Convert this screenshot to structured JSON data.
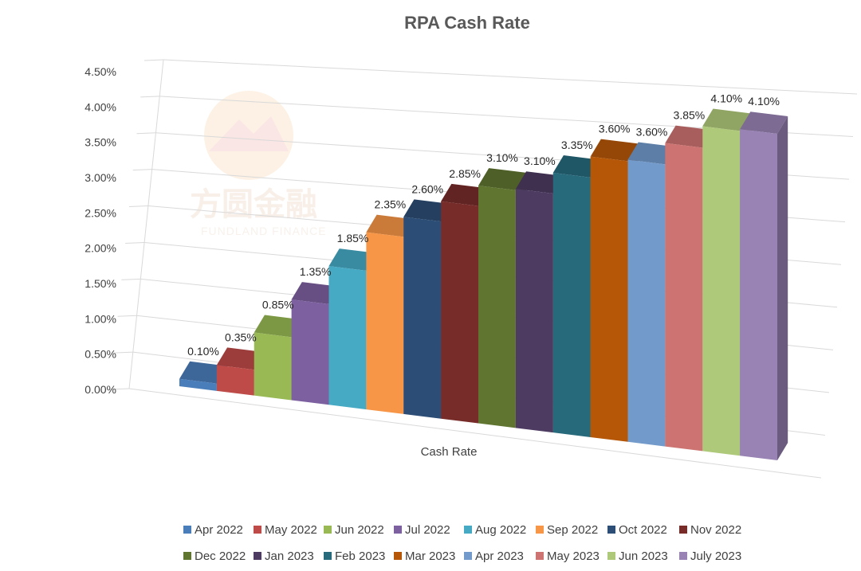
{
  "chart_data": {
    "type": "bar",
    "title": "RPA Cash Rate",
    "xlabel": "Cash Rate",
    "ylabel": "",
    "ylim": [
      0,
      4.5
    ],
    "yticks": [
      "0.00%",
      "0.50%",
      "1.00%",
      "1.50%",
      "2.00%",
      "2.50%",
      "3.00%",
      "3.50%",
      "4.00%",
      "4.50%"
    ],
    "legend_position": "bottom",
    "grid": true,
    "series": [
      {
        "name": "Apr 2022",
        "value": 0.1,
        "label": "0.10%",
        "color": "#4a7ebb"
      },
      {
        "name": "May 2022",
        "value": 0.35,
        "label": "0.35%",
        "color": "#be4b48"
      },
      {
        "name": "Jun 2022",
        "value": 0.85,
        "label": "0.85%",
        "color": "#98b954"
      },
      {
        "name": "Jul 2022",
        "value": 1.35,
        "label": "1.35%",
        "color": "#7d60a0"
      },
      {
        "name": "Aug 2022",
        "value": 1.85,
        "label": "1.85%",
        "color": "#46aac5"
      },
      {
        "name": "Sep 2022",
        "value": 2.35,
        "label": "2.35%",
        "color": "#f79646"
      },
      {
        "name": "Oct 2022",
        "value": 2.6,
        "label": "2.60%",
        "color": "#2c4d75"
      },
      {
        "name": "Nov 2022",
        "value": 2.85,
        "label": "2.85%",
        "color": "#772c2a"
      },
      {
        "name": "Dec 2022",
        "value": 3.1,
        "label": "3.10%",
        "color": "#5f7530"
      },
      {
        "name": "Jan 2023",
        "value": 3.1,
        "label": "3.10%",
        "color": "#4d3b62"
      },
      {
        "name": "Feb 2023",
        "value": 3.35,
        "label": "3.35%",
        "color": "#276a7c"
      },
      {
        "name": "Mar 2023",
        "value": 3.6,
        "label": "3.60%",
        "color": "#b65708"
      },
      {
        "name": "Apr 2023",
        "value": 3.6,
        "label": "3.60%",
        "color": "#729aca"
      },
      {
        "name": "May 2023",
        "value": 3.85,
        "label": "3.85%",
        "color": "#cd7371"
      },
      {
        "name": "Jun 2023",
        "value": 4.1,
        "label": "4.10%",
        "color": "#afc97a"
      },
      {
        "name": "July 2023",
        "value": 4.1,
        "label": "4.10%",
        "color": "#9983b5"
      }
    ]
  },
  "watermark": {
    "text": "方圆金融",
    "subtext": "FUNDLAND FINANCE"
  }
}
